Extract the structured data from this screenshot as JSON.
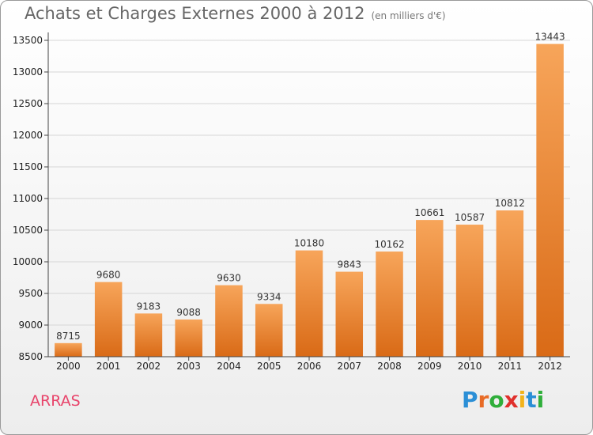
{
  "header": {
    "title": "Achats et Charges Externes 2000 à 2012",
    "subtitle": "(en milliers d'€)"
  },
  "footer": {
    "city": "ARRAS",
    "logo": [
      "P",
      "r",
      "o",
      "x",
      "i",
      "t",
      "i"
    ],
    "logo_colors": [
      "#2b8fd6",
      "#e86b26",
      "#2fae3a",
      "#e0302c",
      "#f2b31b",
      "#2b8fd6",
      "#2fae3a"
    ]
  },
  "chart_data": {
    "type": "bar",
    "categories": [
      "2000",
      "2001",
      "2002",
      "2003",
      "2004",
      "2005",
      "2006",
      "2007",
      "2008",
      "2009",
      "2010",
      "2011",
      "2012"
    ],
    "values": [
      8715,
      9680,
      9183,
      9088,
      9630,
      9334,
      10180,
      9843,
      10162,
      10661,
      10587,
      10812,
      13443
    ],
    "ylim": [
      8500,
      13500
    ],
    "yticks": [
      8500,
      9000,
      9500,
      10000,
      10500,
      11000,
      11500,
      12000,
      12500,
      13000,
      13500
    ],
    "bar_color": "#ef8f33",
    "grid": true
  }
}
